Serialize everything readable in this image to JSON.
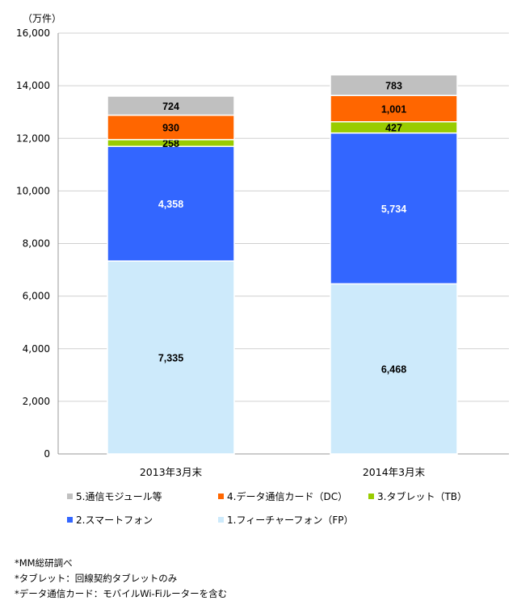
{
  "chart_data": {
    "type": "bar",
    "stacked": true,
    "unit_label": "（万件）",
    "categories": [
      "2013年3月末",
      "2014年3月末"
    ],
    "series": [
      {
        "name": "1.フィーチャーフォン（FP）",
        "values": [
          7335,
          6468
        ],
        "labels": [
          "7,335",
          "6,468"
        ],
        "color": "#cdeafb",
        "label_color": "#000000"
      },
      {
        "name": "2.スマートフォン",
        "values": [
          4358,
          5734
        ],
        "labels": [
          "4,358",
          "5,734"
        ],
        "color": "#3366ff",
        "label_color": "#ffffff"
      },
      {
        "name": "3.タブレット（TB）",
        "values": [
          258,
          427
        ],
        "labels": [
          "258",
          "427"
        ],
        "color": "#99cc00",
        "label_color": "#000000"
      },
      {
        "name": "4.データ通信カード（DC）",
        "values": [
          930,
          1001
        ],
        "labels": [
          "930",
          "1,001"
        ],
        "color": "#ff6600",
        "label_color": "#000000"
      },
      {
        "name": "5.通信モジュール等",
        "values": [
          724,
          783
        ],
        "labels": [
          "724",
          "783"
        ],
        "color": "#c0c0c0",
        "label_color": "#000000"
      }
    ],
    "ylim": [
      0,
      16000
    ],
    "yticks": [
      0,
      2000,
      4000,
      6000,
      8000,
      10000,
      12000,
      14000,
      16000
    ],
    "ytick_labels": [
      "0",
      "2,000",
      "4,000",
      "6,000",
      "8,000",
      "10,000",
      "12,000",
      "14,000",
      "16,000"
    ],
    "grid": true,
    "legend_placement": "bottom",
    "legend_order": [
      4,
      3,
      2,
      1,
      0
    ]
  },
  "notes": [
    "*MM総研調べ",
    "*タブレット：回線契約タブレットのみ",
    "*データ通信カード：モバイルWi-Fiルーターを含む"
  ]
}
